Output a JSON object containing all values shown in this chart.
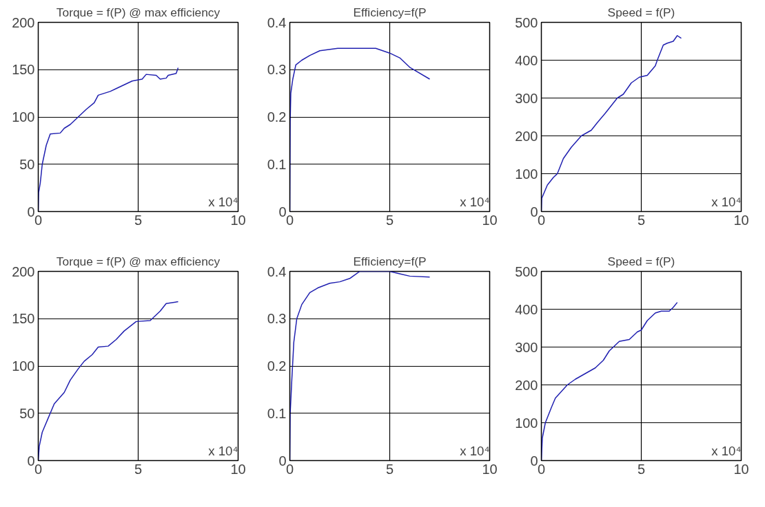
{
  "chart_data": [
    {
      "type": "line",
      "title": "Torque = f(P) @ max efficiency",
      "x": [
        0,
        0.02,
        0.1,
        0.2,
        0.4,
        0.6,
        1.1,
        1.3,
        1.6,
        2,
        2.4,
        2.8,
        3,
        3.6,
        3.9,
        4.3,
        4.7,
        5.2,
        5.4,
        5.9,
        6.1,
        6.4,
        6.5,
        6.9,
        7
      ],
      "series": [
        {
          "color": "#2020b0",
          "values": [
            0,
            20,
            30,
            50,
            70,
            82,
            83,
            88,
            92,
            100,
            108,
            115,
            123,
            127,
            130,
            134,
            138,
            140,
            145,
            144,
            140,
            141,
            144,
            146,
            152
          ]
        }
      ],
      "xlim": [
        0,
        10
      ],
      "xticks": [
        0,
        5,
        10
      ],
      "ylim": [
        0,
        200
      ],
      "yticks": [
        0,
        50,
        100,
        150,
        200
      ],
      "grid": true,
      "marker": "none",
      "line_style": "solid",
      "annotations": [
        "x 10⁴"
      ]
    },
    {
      "type": "line",
      "title": "Efficiency=f(P",
      "x": [
        0,
        0.02,
        0.05,
        0.15,
        0.3,
        0.6,
        1,
        1.5,
        2.4,
        4.3,
        5,
        5.5,
        6,
        7
      ],
      "series": [
        {
          "color": "#2020b0",
          "values": [
            0,
            0.19,
            0.25,
            0.28,
            0.31,
            0.32,
            0.33,
            0.34,
            0.345,
            0.345,
            0.335,
            0.325,
            0.305,
            0.28
          ]
        }
      ],
      "xlim": [
        0,
        10
      ],
      "xticks": [
        0,
        5,
        10
      ],
      "ylim": [
        0,
        0.4
      ],
      "yticks": [
        0,
        0.1,
        0.2,
        0.3,
        0.4
      ],
      "grid": true,
      "marker": "none",
      "line_style": "solid",
      "annotations": [
        "x 10⁴"
      ]
    },
    {
      "type": "line",
      "title": "Speed = f(P)",
      "x": [
        0,
        0.02,
        0.3,
        0.6,
        0.8,
        1.1,
        1.5,
        2,
        2.5,
        2.8,
        3.2,
        3.5,
        3.8,
        4.1,
        4.5,
        4.9,
        5.3,
        5.7,
        5.8,
        6.1,
        6.3,
        6.6,
        6.8,
        7
      ],
      "series": [
        {
          "color": "#2020b0",
          "values": [
            0,
            35,
            70,
            90,
            100,
            140,
            170,
            200,
            215,
            235,
            260,
            280,
            300,
            310,
            340,
            355,
            360,
            385,
            400,
            440,
            445,
            450,
            465,
            458
          ]
        }
      ],
      "xlim": [
        0,
        10
      ],
      "xticks": [
        0,
        5,
        10
      ],
      "ylim": [
        0,
        500
      ],
      "yticks": [
        0,
        100,
        200,
        300,
        400,
        500
      ],
      "grid": true,
      "marker": "none",
      "line_style": "solid",
      "annotations": [
        "x 10⁴"
      ]
    },
    {
      "type": "line",
      "title": "Torque = f(P) @ max efficiency",
      "x": [
        0,
        0.05,
        0.2,
        0.5,
        0.8,
        1.3,
        1.6,
        2,
        2.3,
        2.7,
        3,
        3.5,
        3.9,
        4.3,
        4.9,
        5.6,
        6.1,
        6.4,
        7
      ],
      "series": [
        {
          "color": "#2020b0",
          "values": [
            0,
            15,
            30,
            45,
            60,
            72,
            85,
            97,
            105,
            112,
            120,
            121,
            128,
            137,
            147,
            148,
            158,
            166,
            168
          ]
        }
      ],
      "xlim": [
        0,
        10
      ],
      "xticks": [
        0,
        5,
        10
      ],
      "ylim": [
        0,
        200
      ],
      "yticks": [
        0,
        50,
        100,
        150,
        200
      ],
      "grid": true,
      "marker": "none",
      "line_style": "solid",
      "annotations": [
        "x 10⁴"
      ]
    },
    {
      "type": "line",
      "title": "Efficiency=f(P",
      "x": [
        0,
        0.02,
        0.1,
        0.2,
        0.35,
        0.6,
        1,
        1.4,
        2,
        2.5,
        3,
        3.5,
        5,
        5.5,
        6,
        7
      ],
      "series": [
        {
          "color": "#2020b0",
          "values": [
            0,
            0.1,
            0.17,
            0.25,
            0.3,
            0.33,
            0.355,
            0.365,
            0.375,
            0.378,
            0.385,
            0.4,
            0.4,
            0.395,
            0.39,
            0.388
          ]
        }
      ],
      "xlim": [
        0,
        10
      ],
      "xticks": [
        0,
        5,
        10
      ],
      "ylim": [
        0,
        0.4
      ],
      "yticks": [
        0,
        0.1,
        0.2,
        0.3,
        0.4
      ],
      "grid": true,
      "marker": "none",
      "line_style": "solid",
      "annotations": [
        "x 10⁴"
      ]
    },
    {
      "type": "line",
      "title": "Speed = f(P)",
      "x": [
        0,
        0.05,
        0.2,
        0.5,
        0.7,
        1.3,
        1.7,
        2.2,
        2.7,
        3.1,
        3.4,
        3.6,
        3.9,
        4.4,
        4.8,
        5,
        5.3,
        5.7,
        6,
        6.4,
        6.6,
        6.8
      ],
      "series": [
        {
          "color": "#2020b0",
          "values": [
            0,
            60,
            100,
            140,
            165,
            200,
            215,
            230,
            245,
            265,
            290,
            300,
            315,
            320,
            340,
            345,
            370,
            390,
            395,
            395,
            405,
            418
          ]
        }
      ],
      "xlim": [
        0,
        10
      ],
      "xticks": [
        0,
        5,
        10
      ],
      "ylim": [
        0,
        500
      ],
      "yticks": [
        0,
        100,
        200,
        300,
        400,
        500
      ],
      "grid": true,
      "marker": "none",
      "line_style": "solid",
      "annotations": [
        "x 10⁴"
      ]
    }
  ]
}
